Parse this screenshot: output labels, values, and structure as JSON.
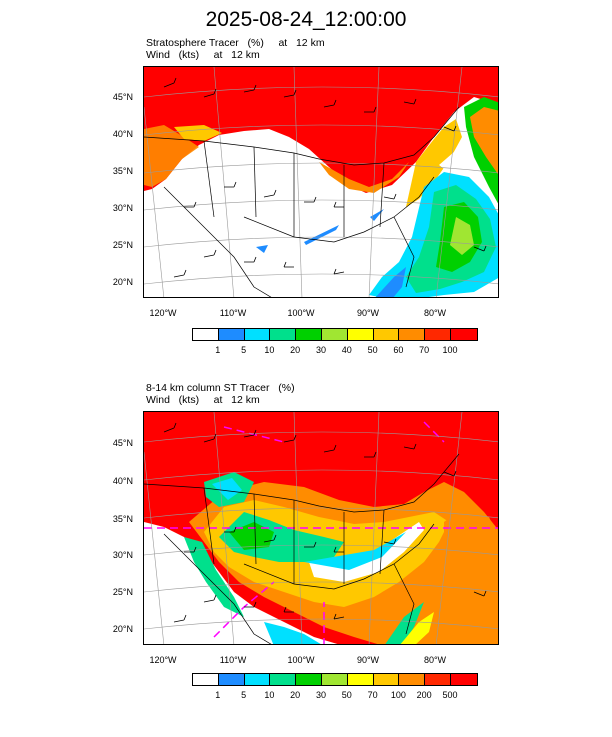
{
  "title": "2025-08-24_12:00:00",
  "panel1": {
    "title_line1": "Stratosphere Tracer   (%)     at   12 km",
    "title_line2": "Wind   (kts)     at   12 km",
    "colorbar_labels": [
      "1",
      "5",
      "10",
      "20",
      "30",
      "40",
      "50",
      "60",
      "70",
      "100"
    ]
  },
  "panel2": {
    "title_line1": "8-14 km column ST Tracer   (%)",
    "title_line2": "Wind   (kts)     at   12 km",
    "colorbar_labels": [
      "1",
      "5",
      "10",
      "20",
      "30",
      "50",
      "70",
      "100",
      "200",
      "500"
    ]
  },
  "lat_labels": [
    "45°N",
    "40°N",
    "35°N",
    "30°N",
    "25°N",
    "20°N"
  ],
  "lon_labels": [
    "120°W",
    "110°W",
    "100°W",
    "90°W",
    "80°W"
  ],
  "colorbar_colors": [
    "#ffffff",
    "#1e8cff",
    "#00e0ff",
    "#00e08c",
    "#00d000",
    "#a0e632",
    "#ffff00",
    "#ffc800",
    "#ff8c00",
    "#ff2800",
    "#ff0000"
  ]
}
